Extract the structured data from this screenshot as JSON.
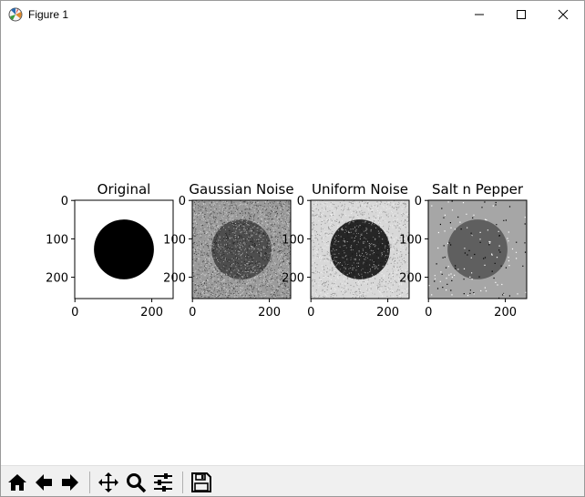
{
  "window": {
    "title": "Figure 1"
  },
  "figure": {
    "subplots": [
      {
        "title": "Original",
        "style": "clean",
        "background_color": "#ffffff",
        "circle_color": "#000000"
      },
      {
        "title": "Gaussian Noise",
        "style": "gaussian",
        "background_color": "#9b9b9b",
        "circle_color": "#4e4e4e"
      },
      {
        "title": "Uniform Noise",
        "style": "uniform",
        "background_color": "#d8d8d8",
        "circle_color": "#262626"
      },
      {
        "title": "Salt n Pepper",
        "style": "saltpepper",
        "background_color": "#a6a6a6",
        "circle_color": "#5f5f5f"
      }
    ],
    "x_ticks": [
      "0",
      "200"
    ],
    "y_ticks": [
      "0",
      "100",
      "200"
    ]
  },
  "toolbar": {
    "buttons": [
      {
        "name": "home",
        "icon": "home-icon"
      },
      {
        "name": "back",
        "icon": "arrow-left-icon"
      },
      {
        "name": "forward",
        "icon": "arrow-right-icon"
      },
      {
        "name": "pan",
        "icon": "move-icon"
      },
      {
        "name": "zoom",
        "icon": "magnifier-icon"
      },
      {
        "name": "configure-subplots",
        "icon": "sliders-icon"
      },
      {
        "name": "save",
        "icon": "floppy-disk-icon"
      }
    ]
  }
}
